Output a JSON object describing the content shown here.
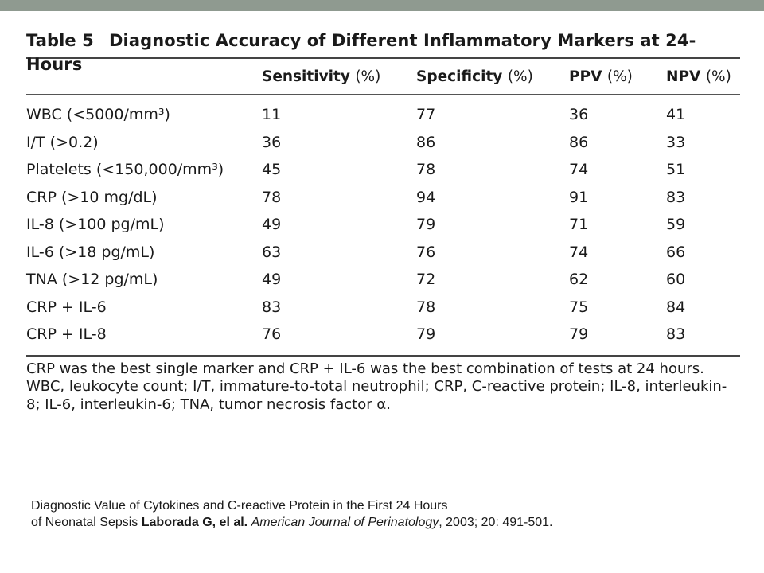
{
  "table": {
    "number": "Table 5",
    "title": "Diagnostic Accuracy of Different Inflammatory Markers at 24-Hours",
    "headers": [
      {
        "label": "",
        "unit": ""
      },
      {
        "label": "Sensitivity",
        "unit": "(%)"
      },
      {
        "label": "Specificity",
        "unit": "(%)"
      },
      {
        "label": "PPV",
        "unit": "(%)"
      },
      {
        "label": "NPV",
        "unit": "(%)"
      }
    ],
    "rows": [
      {
        "marker": "WBC (<5000/mm³)",
        "sensitivity": "11",
        "specificity": "77",
        "ppv": "36",
        "npv": "41"
      },
      {
        "marker": "I/T (>0.2)",
        "sensitivity": "36",
        "specificity": "86",
        "ppv": "86",
        "npv": "33"
      },
      {
        "marker": "Platelets (<150,000/mm³)",
        "sensitivity": "45",
        "specificity": "78",
        "ppv": "74",
        "npv": "51"
      },
      {
        "marker": "CRP (>10 mg/dL)",
        "sensitivity": "78",
        "specificity": "94",
        "ppv": "91",
        "npv": "83"
      },
      {
        "marker": "IL-8 (>100 pg/mL)",
        "sensitivity": "49",
        "specificity": "79",
        "ppv": "71",
        "npv": "59"
      },
      {
        "marker": "IL-6 (>18 pg/mL)",
        "sensitivity": "63",
        "specificity": "76",
        "ppv": "74",
        "npv": "66"
      },
      {
        "marker": "TNA (>12 pg/mL)",
        "sensitivity": "49",
        "specificity": "72",
        "ppv": "62",
        "npv": "60"
      },
      {
        "marker": "CRP + IL-6",
        "sensitivity": "83",
        "specificity": "78",
        "ppv": "75",
        "npv": "84"
      },
      {
        "marker": "CRP + IL-8",
        "sensitivity": "76",
        "specificity": "79",
        "ppv": "79",
        "npv": "83"
      }
    ],
    "note_1": "CRP was the best single marker and CRP + IL-6 was the best combination of tests at 24 hours.",
    "note_2": "WBC, leukocyte count; I/T, immature-to-total neutrophil; CRP, C-reactive protein; IL-8, interleukin-8; IL-6, interleukin-6; TNA, tumor necrosis factor α."
  },
  "citation": {
    "line_1": "Diagnostic Value of Cytokines and C-reactive Protein in the First 24 Hours",
    "line_2_prefix": "of Neonatal Sepsis ",
    "authors": "Laborada G, el al.",
    "journal": "American Journal of Perinatology",
    "details": ", 2003; 20: 491-501."
  },
  "colors": {
    "top_bar": "#8f9a90"
  }
}
